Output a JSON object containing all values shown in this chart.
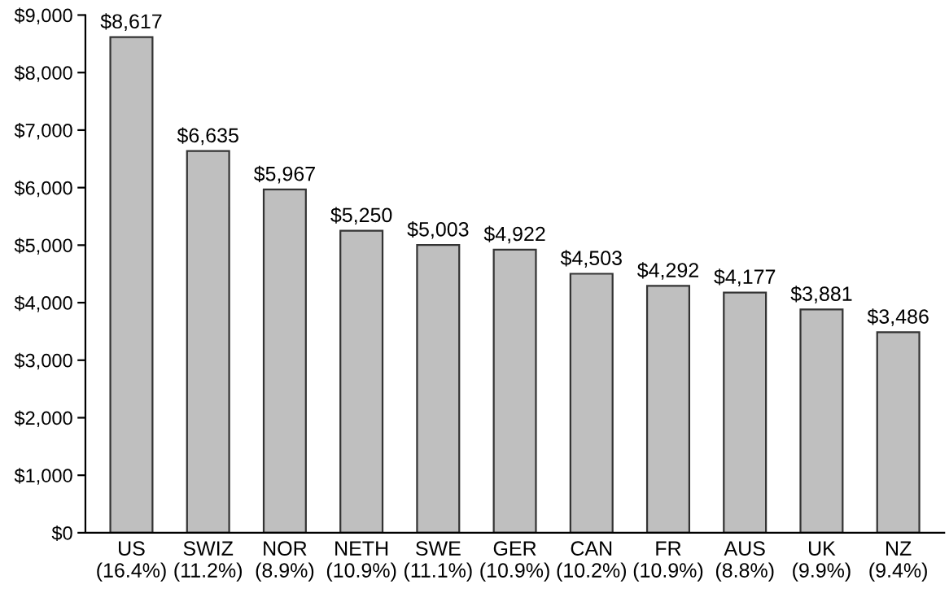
{
  "chart_data": {
    "type": "bar",
    "categories": [
      "US\n(16.4%)",
      "SWIZ\n(11.2%)",
      "NOR\n(8.9%)",
      "NETH\n(10.9%)",
      "SWE\n(11.1%)",
      "GER\n(10.9%)",
      "CAN\n(10.2%)",
      "FR\n(10.9%)",
      "AUS\n(8.8%)",
      "UK\n(9.9%)",
      "NZ\n(9.4%)"
    ],
    "values": [
      8617,
      6635,
      5967,
      5250,
      5003,
      4922,
      4503,
      4292,
      4177,
      3881,
      3486
    ],
    "value_labels": [
      "$8,617",
      "$6,635",
      "$5,967",
      "$5,250",
      "$5,003",
      "$4,922",
      "$4,503",
      "$4,292",
      "$4,177",
      "$3,881",
      "$3,486"
    ],
    "color": "#bfbfbf",
    "ylim": [
      0,
      9000
    ],
    "yticks": [
      {
        "value": 0,
        "label": "$0"
      },
      {
        "value": 1000,
        "label": "$1,000"
      },
      {
        "value": 2000,
        "label": "$2,000"
      },
      {
        "value": 3000,
        "label": "$3,000"
      },
      {
        "value": 4000,
        "label": "$4,000"
      },
      {
        "value": 5000,
        "label": "$5,000"
      },
      {
        "value": 6000,
        "label": "$6,000"
      },
      {
        "value": 7000,
        "label": "$7,000"
      },
      {
        "value": 8000,
        "label": "$8,000"
      },
      {
        "value": 9000,
        "label": "$9,000"
      }
    ],
    "grid": false
  }
}
